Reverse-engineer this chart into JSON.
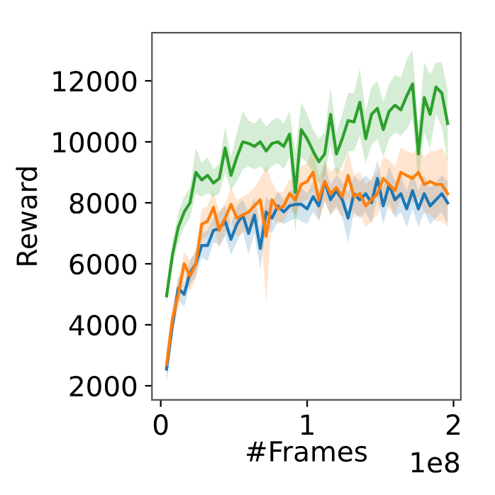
{
  "chart_data": {
    "type": "line",
    "xlabel": "#Frames",
    "ylabel": "Reward",
    "annotations": [
      "1e8"
    ],
    "x": [
      0.04,
      0.08,
      0.12,
      0.16,
      0.2,
      0.24,
      0.28,
      0.32,
      0.36,
      0.4,
      0.44,
      0.48,
      0.52,
      0.56,
      0.6,
      0.64,
      0.68,
      0.72,
      0.76,
      0.8,
      0.84,
      0.88,
      0.92,
      0.96,
      1.0,
      1.04,
      1.08,
      1.12,
      1.16,
      1.2,
      1.24,
      1.28,
      1.32,
      1.36,
      1.4,
      1.44,
      1.48,
      1.52,
      1.56,
      1.6,
      1.64,
      1.68,
      1.72,
      1.76,
      1.8,
      1.84,
      1.88,
      1.92,
      1.96
    ],
    "xlim": [
      -0.06,
      2.05
    ],
    "xticks": [
      0,
      1,
      2
    ],
    "ylim": [
      1535,
      13580
    ],
    "yticks": [
      2000,
      4000,
      6000,
      8000,
      10000,
      12000
    ],
    "grid": false,
    "legend": false,
    "series": [
      {
        "color": "#1f77b4",
        "values": [
          2550,
          4000,
          5200,
          5000,
          5700,
          6000,
          6600,
          6600,
          7100,
          7150,
          7400,
          6800,
          7300,
          7600,
          7000,
          7600,
          6500,
          7700,
          7500,
          7900,
          7700,
          7900,
          7950,
          7950,
          7800,
          8200,
          7900,
          8700,
          8100,
          8400,
          8100,
          7500,
          8300,
          8100,
          8300,
          8000,
          8800,
          7900,
          8600,
          8100,
          8300,
          7800,
          8400,
          7800,
          8300,
          7900,
          8100,
          8300,
          8000
        ],
        "lower": [
          2200,
          3600,
          4800,
          4600,
          5300,
          5600,
          6200,
          6100,
          6700,
          6600,
          6900,
          6300,
          6700,
          7100,
          6300,
          7000,
          5800,
          7200,
          7000,
          7400,
          7300,
          7400,
          7500,
          7400,
          7300,
          7700,
          7400,
          8100,
          7600,
          7900,
          7500,
          6700,
          7700,
          7500,
          7700,
          7300,
          8200,
          7300,
          8000,
          7500,
          7700,
          7200,
          7800,
          7200,
          7700,
          7300,
          7500,
          7700,
          7300
        ],
        "upper": [
          2900,
          4400,
          5600,
          5400,
          6100,
          6400,
          7000,
          7100,
          7500,
          7700,
          7900,
          7300,
          7900,
          8100,
          7700,
          8200,
          7200,
          8200,
          8000,
          8400,
          8100,
          8400,
          8400,
          8500,
          8300,
          8700,
          8400,
          9300,
          8600,
          8900,
          8700,
          8300,
          8900,
          8700,
          8900,
          8700,
          9400,
          8500,
          9200,
          8700,
          8900,
          8400,
          9000,
          8400,
          8900,
          8500,
          8700,
          8900,
          8700
        ]
      },
      {
        "color": "#ff7f0e",
        "values": [
          2700,
          4200,
          5000,
          6000,
          5600,
          6000,
          7300,
          7400,
          7850,
          7100,
          7500,
          7950,
          7500,
          7600,
          7700,
          7900,
          8100,
          6900,
          8100,
          7800,
          7900,
          8300,
          8100,
          8600,
          8700,
          9000,
          8100,
          8700,
          8300,
          8500,
          8200,
          8900,
          8200,
          8300,
          7900,
          8100,
          8300,
          8800,
          8600,
          8400,
          9000,
          8900,
          8800,
          9000,
          8600,
          8700,
          8600,
          8600,
          8300
        ],
        "lower": [
          2100,
          3800,
          4500,
          5600,
          5100,
          5500,
          6800,
          6900,
          7300,
          6500,
          7000,
          7400,
          6900,
          7000,
          7100,
          7300,
          7400,
          4700,
          7500,
          7300,
          7400,
          7800,
          7600,
          8000,
          8100,
          8400,
          7400,
          8000,
          7600,
          7800,
          7500,
          8200,
          7500,
          7600,
          7200,
          7400,
          7600,
          8100,
          7800,
          7600,
          8200,
          8100,
          8000,
          8200,
          7700,
          7600,
          7400,
          7400,
          7200
        ],
        "upper": [
          3200,
          4600,
          5500,
          6400,
          6100,
          6500,
          7800,
          7900,
          8400,
          7700,
          8000,
          8500,
          8100,
          8200,
          8300,
          8500,
          8800,
          9200,
          8700,
          8300,
          8400,
          8800,
          8600,
          9200,
          9300,
          9800,
          8800,
          9400,
          9000,
          9200,
          9000,
          9700,
          8900,
          9000,
          8600,
          8800,
          9000,
          9500,
          9400,
          9200,
          9800,
          9700,
          9600,
          9800,
          9500,
          9700,
          9700,
          9800,
          9500
        ]
      },
      {
        "color": "#2ca02c",
        "values": [
          4950,
          6300,
          7200,
          7700,
          8000,
          9000,
          8750,
          8900,
          8650,
          8800,
          9800,
          8900,
          9500,
          10000,
          9950,
          9850,
          10000,
          9700,
          9950,
          10000,
          9850,
          10250,
          8350,
          10400,
          10100,
          9700,
          9350,
          9600,
          10900,
          9600,
          10100,
          10700,
          10650,
          11300,
          10100,
          10900,
          11100,
          10400,
          11000,
          11200,
          11050,
          11500,
          11900,
          9600,
          11450,
          10900,
          11800,
          11600,
          10600
        ],
        "lower": [
          4650,
          5900,
          6700,
          7200,
          7500,
          8300,
          8200,
          8300,
          8200,
          8300,
          9000,
          8400,
          8700,
          9100,
          9200,
          9100,
          9200,
          9000,
          9200,
          9300,
          9100,
          9500,
          7000,
          9500,
          9300,
          9000,
          8600,
          8900,
          9900,
          8900,
          9200,
          9700,
          9700,
          10200,
          9300,
          9900,
          10100,
          9500,
          10100,
          10300,
          10200,
          10400,
          10800,
          8700,
          10300,
          9800,
          10900,
          10500,
          9300
        ],
        "upper": [
          5300,
          6700,
          7700,
          8200,
          8500,
          9800,
          9300,
          9500,
          9100,
          9300,
          10500,
          9500,
          10300,
          11000,
          10700,
          10600,
          10800,
          10500,
          10700,
          10800,
          10600,
          11000,
          9700,
          11300,
          10900,
          10400,
          10100,
          10300,
          11800,
          10300,
          10900,
          11600,
          11600,
          12400,
          11000,
          11800,
          12000,
          11300,
          11900,
          12200,
          12100,
          12700,
          13000,
          10500,
          12600,
          12200,
          12600,
          12600,
          11700
        ]
      }
    ]
  }
}
